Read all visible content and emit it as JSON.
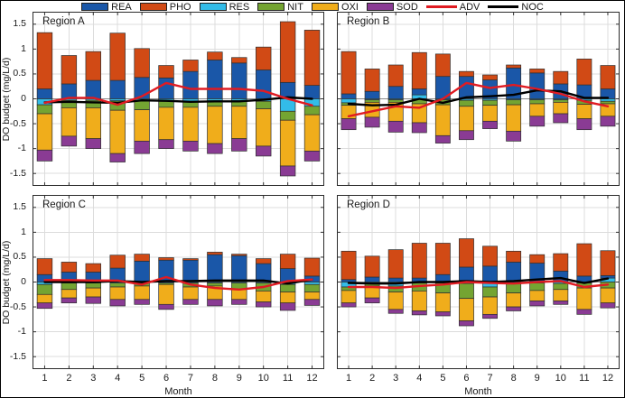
{
  "figure": {
    "legend": [
      {
        "label": "REA",
        "color": "#1a57a8",
        "type": "box"
      },
      {
        "label": "PHO",
        "color": "#d14a15",
        "type": "box"
      },
      {
        "label": "RES",
        "color": "#33bce8",
        "type": "box"
      },
      {
        "label": "NIT",
        "color": "#74a432",
        "type": "box"
      },
      {
        "label": "OXI",
        "color": "#f0ad1b",
        "type": "box"
      },
      {
        "label": "SOD",
        "color": "#8a3b94",
        "type": "box"
      },
      {
        "label": "ADV",
        "color": "#e01b22",
        "type": "line"
      },
      {
        "label": "NOC",
        "color": "#000000",
        "type": "line"
      }
    ]
  },
  "chart_data": [
    {
      "type": "bar",
      "stacked": true,
      "title": "Region A",
      "x": [
        1,
        2,
        3,
        4,
        5,
        6,
        7,
        8,
        9,
        10,
        11,
        12
      ],
      "xlabel": "Month",
      "ylabel": "DO budget (mg/L/d)",
      "ylim": [
        -1.75,
        1.75
      ],
      "yticks": [
        -1.5,
        -1,
        -0.5,
        0,
        0.5,
        1,
        1.5
      ],
      "grid": true,
      "bar_series": [
        {
          "name": "REA",
          "values": [
            0.2,
            0.3,
            0.37,
            0.37,
            0.43,
            0.42,
            0.55,
            0.78,
            0.72,
            0.58,
            0.33,
            0.27
          ]
        },
        {
          "name": "PHO",
          "values": [
            1.13,
            0.57,
            0.58,
            0.95,
            0.58,
            0.25,
            0.23,
            0.16,
            0.11,
            0.46,
            1.22,
            1.11
          ]
        },
        {
          "name": "RES",
          "values": [
            -0.12,
            -0.03,
            -0.03,
            -0.04,
            -0.04,
            -0.05,
            -0.05,
            -0.04,
            -0.04,
            -0.05,
            -0.25,
            -0.15
          ]
        },
        {
          "name": "NIT",
          "values": [
            -0.18,
            -0.15,
            -0.15,
            -0.19,
            -0.18,
            -0.12,
            -0.12,
            -0.11,
            -0.11,
            -0.15,
            -0.18,
            -0.17
          ]
        },
        {
          "name": "OXI",
          "values": [
            -0.73,
            -0.57,
            -0.62,
            -0.87,
            -0.63,
            -0.65,
            -0.68,
            -0.75,
            -0.65,
            -0.75,
            -0.92,
            -0.73
          ]
        },
        {
          "name": "SOD",
          "values": [
            -0.22,
            -0.2,
            -0.2,
            -0.17,
            -0.25,
            -0.18,
            -0.2,
            -0.2,
            -0.25,
            -0.2,
            -0.2,
            -0.2
          ]
        }
      ],
      "line_series": [
        {
          "name": "NOC",
          "values": [
            -0.07,
            -0.06,
            -0.07,
            -0.08,
            -0.03,
            -0.04,
            -0.06,
            -0.05,
            -0.05,
            -0.02,
            0.03,
            0.0
          ]
        },
        {
          "name": "ADV",
          "values": [
            -0.08,
            0.02,
            0.02,
            -0.12,
            0.05,
            0.32,
            0.2,
            0.2,
            0.2,
            0.16,
            0.0,
            -0.13
          ]
        }
      ]
    },
    {
      "type": "bar",
      "stacked": true,
      "title": "Region B",
      "x": [
        1,
        2,
        3,
        4,
        5,
        6,
        7,
        8,
        9,
        10,
        11,
        12
      ],
      "xlabel": "Month",
      "ylabel": "DO budget (mg/L/d)",
      "ylim": [
        -1.75,
        1.75
      ],
      "yticks": [
        -1.5,
        -1,
        -0.5,
        0,
        0.5,
        1,
        1.5
      ],
      "grid": true,
      "bar_series": [
        {
          "name": "REA",
          "values": [
            0.1,
            0.15,
            0.25,
            0.12,
            0.45,
            0.45,
            0.38,
            0.62,
            0.52,
            0.3,
            0.28,
            0.2
          ]
        },
        {
          "name": "PHO",
          "values": [
            0.85,
            0.45,
            0.43,
            0.73,
            0.45,
            0.1,
            0.1,
            0.06,
            0.08,
            0.25,
            0.52,
            0.47
          ]
        },
        {
          "name": "RES",
          "values": [
            -0.08,
            -0.02,
            -0.02,
            0.08,
            -0.02,
            -0.03,
            -0.03,
            -0.02,
            -0.02,
            -0.02,
            -0.03,
            -0.05
          ]
        },
        {
          "name": "NIT",
          "values": [
            -0.05,
            -0.05,
            -0.05,
            -0.1,
            -0.1,
            -0.12,
            -0.1,
            -0.1,
            -0.08,
            -0.05,
            -0.08,
            -0.05
          ]
        },
        {
          "name": "OXI",
          "values": [
            -0.27,
            -0.3,
            -0.38,
            -0.38,
            -0.62,
            -0.49,
            -0.32,
            -0.53,
            -0.25,
            -0.23,
            -0.29,
            -0.25
          ]
        },
        {
          "name": "SOD",
          "values": [
            -0.22,
            -0.2,
            -0.22,
            -0.2,
            -0.15,
            -0.18,
            -0.15,
            -0.2,
            -0.2,
            -0.18,
            -0.22,
            -0.2
          ]
        }
      ],
      "line_series": [
        {
          "name": "NOC",
          "values": [
            -0.1,
            -0.13,
            -0.12,
            0.0,
            -0.08,
            0.03,
            0.05,
            0.08,
            0.17,
            0.15,
            0.02,
            0.02
          ]
        },
        {
          "name": "ADV",
          "values": [
            -0.35,
            -0.25,
            -0.15,
            -0.18,
            0.0,
            0.32,
            0.22,
            0.28,
            0.2,
            0.1,
            -0.05,
            -0.15
          ]
        }
      ]
    },
    {
      "type": "bar",
      "stacked": true,
      "title": "Region C",
      "x": [
        1,
        2,
        3,
        4,
        5,
        6,
        7,
        8,
        9,
        10,
        11,
        12
      ],
      "xlabel": "Month",
      "ylabel": "DO budget (mg/L/d)",
      "ylim": [
        -1.75,
        1.75
      ],
      "yticks": [
        -1.5,
        -1,
        -0.5,
        0,
        0.5,
        1,
        1.5
      ],
      "grid": true,
      "bar_series": [
        {
          "name": "REA",
          "values": [
            0.15,
            0.2,
            0.2,
            0.28,
            0.42,
            0.44,
            0.44,
            0.55,
            0.53,
            0.37,
            0.27,
            0.12
          ]
        },
        {
          "name": "PHO",
          "values": [
            0.32,
            0.2,
            0.17,
            0.26,
            0.14,
            0.05,
            0.03,
            0.05,
            0.03,
            0.1,
            0.29,
            0.36
          ]
        },
        {
          "name": "RES",
          "values": [
            -0.05,
            -0.02,
            -0.02,
            -0.02,
            -0.02,
            -0.02,
            -0.02,
            -0.02,
            -0.02,
            -0.02,
            -0.05,
            -0.05
          ]
        },
        {
          "name": "NIT",
          "values": [
            -0.2,
            -0.13,
            -0.1,
            -0.08,
            -0.06,
            -0.03,
            -0.08,
            -0.06,
            -0.13,
            -0.16,
            -0.15,
            -0.15
          ]
        },
        {
          "name": "OXI",
          "values": [
            -0.17,
            -0.17,
            -0.18,
            -0.25,
            -0.27,
            -0.4,
            -0.25,
            -0.27,
            -0.2,
            -0.22,
            -0.22,
            -0.15
          ]
        },
        {
          "name": "SOD",
          "values": [
            -0.11,
            -0.1,
            -0.13,
            -0.13,
            -0.1,
            -0.1,
            -0.1,
            -0.13,
            -0.1,
            -0.1,
            -0.15,
            -0.12
          ]
        }
      ],
      "line_series": [
        {
          "name": "NOC",
          "values": [
            0.0,
            0.0,
            0.0,
            0.02,
            0.0,
            0.02,
            0.02,
            0.03,
            0.03,
            0.03,
            -0.03,
            0.05
          ]
        },
        {
          "name": "ADV",
          "values": [
            0.04,
            0.04,
            0.03,
            0.03,
            -0.05,
            0.1,
            -0.05,
            -0.12,
            -0.15,
            -0.1,
            0.02,
            0.05
          ]
        }
      ]
    },
    {
      "type": "bar",
      "stacked": true,
      "title": "Region D",
      "x": [
        1,
        2,
        3,
        4,
        5,
        6,
        7,
        8,
        9,
        10,
        11,
        12
      ],
      "xlabel": "Month",
      "ylabel": "DO budget (mg/L/d)",
      "ylim": [
        -1.75,
        1.75
      ],
      "yticks": [
        -1.5,
        -1,
        -0.5,
        0,
        0.5,
        1,
        1.5
      ],
      "grid": true,
      "bar_series": [
        {
          "name": "REA",
          "values": [
            0.05,
            0.1,
            0.08,
            0.08,
            0.15,
            0.3,
            0.32,
            0.4,
            0.38,
            0.22,
            0.12,
            0.05
          ]
        },
        {
          "name": "PHO",
          "values": [
            0.57,
            0.42,
            0.57,
            0.7,
            0.63,
            0.57,
            0.4,
            0.22,
            0.17,
            0.35,
            0.65,
            0.5
          ]
        },
        {
          "name": "RES",
          "values": [
            -0.1,
            -0.03,
            -0.08,
            -0.02,
            -0.02,
            -0.03,
            -0.1,
            -0.03,
            -0.02,
            -0.03,
            -0.02,
            0.08
          ]
        },
        {
          "name": "NIT",
          "values": [
            -0.07,
            -0.05,
            -0.12,
            -0.16,
            -0.2,
            -0.3,
            -0.2,
            -0.19,
            -0.15,
            -0.12,
            -0.1,
            -0.12
          ]
        },
        {
          "name": "OXI",
          "values": [
            -0.25,
            -0.24,
            -0.35,
            -0.4,
            -0.38,
            -0.45,
            -0.35,
            -0.28,
            -0.21,
            -0.23,
            -0.43,
            -0.3
          ]
        },
        {
          "name": "SOD",
          "values": [
            -0.08,
            -0.1,
            -0.08,
            -0.08,
            -0.08,
            -0.1,
            -0.08,
            -0.08,
            -0.1,
            -0.07,
            -0.1,
            -0.1
          ]
        }
      ],
      "line_series": [
        {
          "name": "NOC",
          "values": [
            -0.02,
            -0.03,
            -0.03,
            0.0,
            0.0,
            0.02,
            0.0,
            0.02,
            0.05,
            0.08,
            -0.02,
            0.07
          ]
        },
        {
          "name": "ADV",
          "values": [
            -0.1,
            -0.1,
            -0.12,
            -0.08,
            -0.05,
            0.0,
            -0.02,
            -0.03,
            0.0,
            0.02,
            -0.1,
            -0.05
          ]
        }
      ]
    }
  ]
}
